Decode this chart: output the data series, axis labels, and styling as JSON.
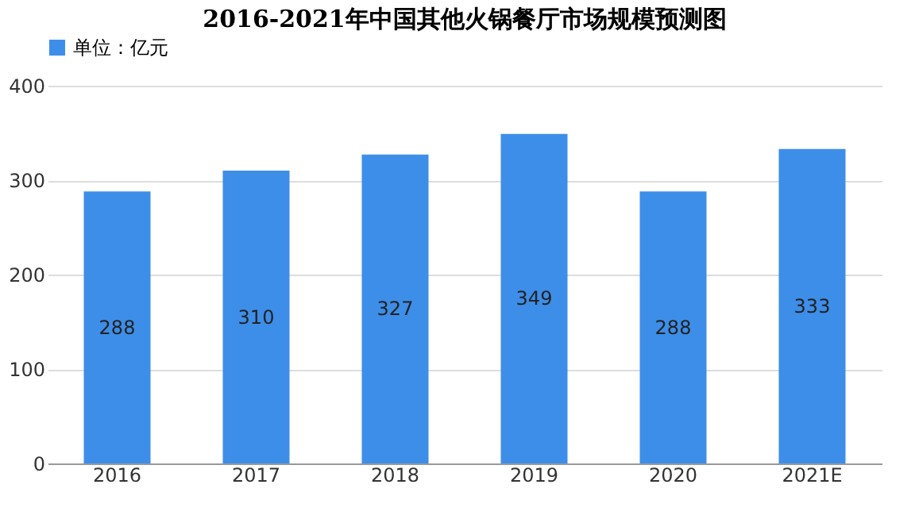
{
  "chart_data": {
    "type": "bar",
    "title": "2016-2021年中国其他火锅餐厅市场规模预测图",
    "categories": [
      "2016",
      "2017",
      "2018",
      "2019",
      "2020",
      "2021E"
    ],
    "series": [
      {
        "name": "单位：亿元",
        "color": "#3d8ee8",
        "values": [
          288,
          310,
          327,
          349,
          288,
          333
        ]
      }
    ],
    "ylim": [
      0,
      400
    ],
    "yticks": [
      0,
      100,
      200,
      300,
      400
    ],
    "grid": "y",
    "legend": "top",
    "data_labels": true
  }
}
